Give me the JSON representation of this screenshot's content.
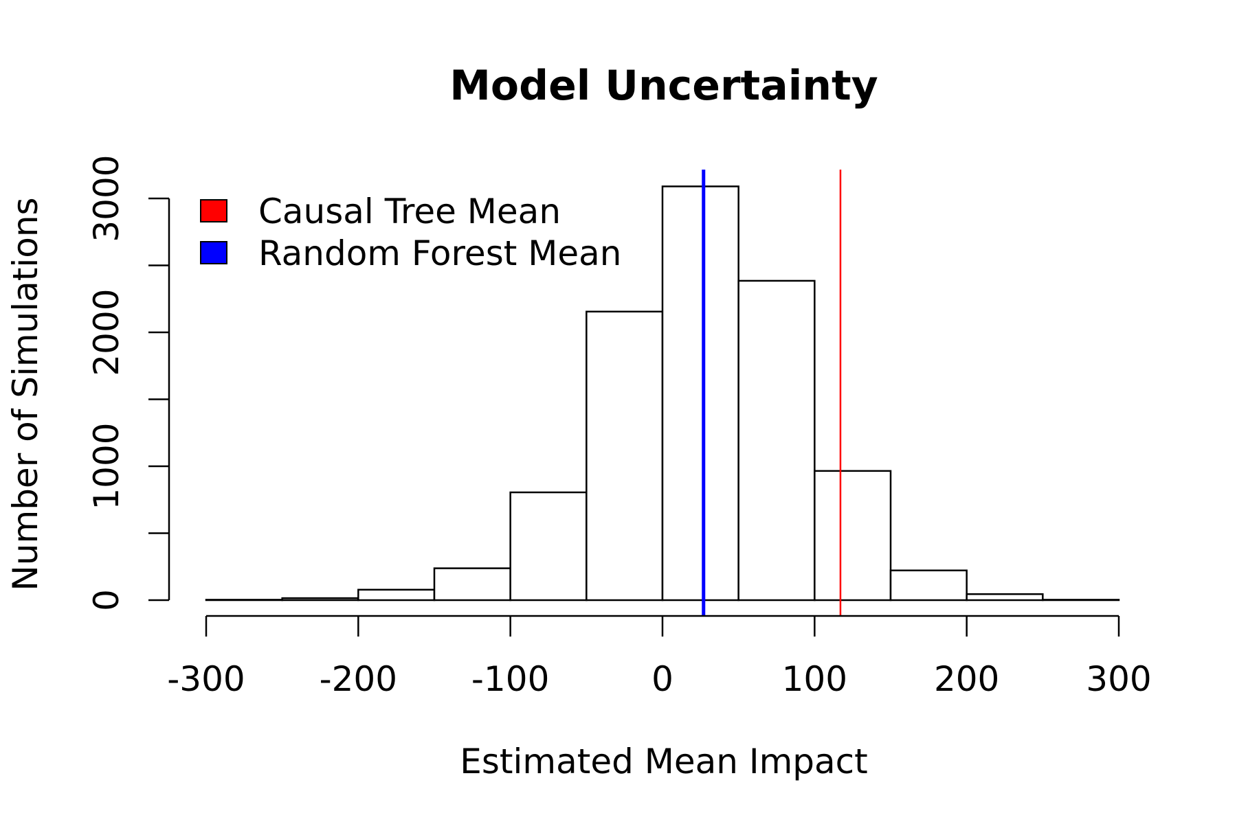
{
  "chart_data": {
    "type": "bar",
    "title": "Model Uncertainty",
    "xlabel": "Estimated Mean Impact",
    "ylabel": "Number of Simulations",
    "xlim": [
      -300,
      300
    ],
    "ylim": [
      0,
      3000
    ],
    "x_ticks": [
      -300,
      -200,
      -100,
      0,
      100,
      200,
      300
    ],
    "x_tick_labels": [
      "-300",
      "-200",
      "-100",
      "0",
      "100",
      "200",
      "300"
    ],
    "y_ticks": [
      0,
      500,
      1000,
      1500,
      2000,
      2500,
      3000
    ],
    "y_tick_labels": [
      "0",
      "",
      "1000",
      "",
      "2000",
      "",
      "3000"
    ],
    "bins": [
      {
        "x0": -300,
        "x1": -250,
        "count": 3
      },
      {
        "x0": -250,
        "x1": -200,
        "count": 15
      },
      {
        "x0": -200,
        "x1": -150,
        "count": 78
      },
      {
        "x0": -150,
        "x1": -100,
        "count": 238
      },
      {
        "x0": -100,
        "x1": -50,
        "count": 805
      },
      {
        "x0": -50,
        "x1": 0,
        "count": 2155
      },
      {
        "x0": 0,
        "x1": 50,
        "count": 3090
      },
      {
        "x0": 50,
        "x1": 100,
        "count": 2385
      },
      {
        "x0": 100,
        "x1": 150,
        "count": 965
      },
      {
        "x0": 150,
        "x1": 200,
        "count": 222
      },
      {
        "x0": 200,
        "x1": 250,
        "count": 45
      },
      {
        "x0": 250,
        "x1": 300,
        "count": 3
      }
    ],
    "reference_lines": [
      {
        "name": "Causal Tree Mean",
        "x": 117,
        "color": "#ff0000"
      },
      {
        "name": "Random Forest Mean",
        "x": 27,
        "color": "#0000ff"
      }
    ],
    "legend": {
      "placement": "top-left",
      "entries": [
        {
          "label": "Causal Tree Mean",
          "color": "#ff0000"
        },
        {
          "label": "Random Forest Mean",
          "color": "#0000ff"
        }
      ]
    },
    "grid": false,
    "bar_fill": "#ffffff",
    "bar_stroke": "#000000"
  }
}
